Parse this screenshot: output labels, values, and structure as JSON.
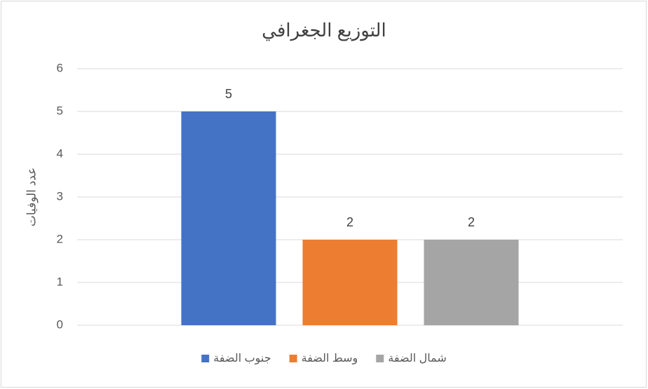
{
  "chart_data": {
    "type": "bar",
    "title": "التوزيع الجغرافي",
    "y_label": "عدد الوفيات",
    "categories": [
      null
    ],
    "series": [
      {
        "name": "جنوب الضفة",
        "color": "#4472c4",
        "values": [
          5
        ]
      },
      {
        "name": "وسط الضفة",
        "color": "#ed7d31",
        "values": [
          2
        ]
      },
      {
        "name": "شمال الضفة",
        "color": "#a5a5a5",
        "values": [
          2
        ]
      }
    ],
    "ylim": [
      0,
      6
    ],
    "yticks": [
      0,
      1,
      2,
      3,
      4,
      5,
      6
    ],
    "grid": true,
    "legend": "bottom"
  }
}
